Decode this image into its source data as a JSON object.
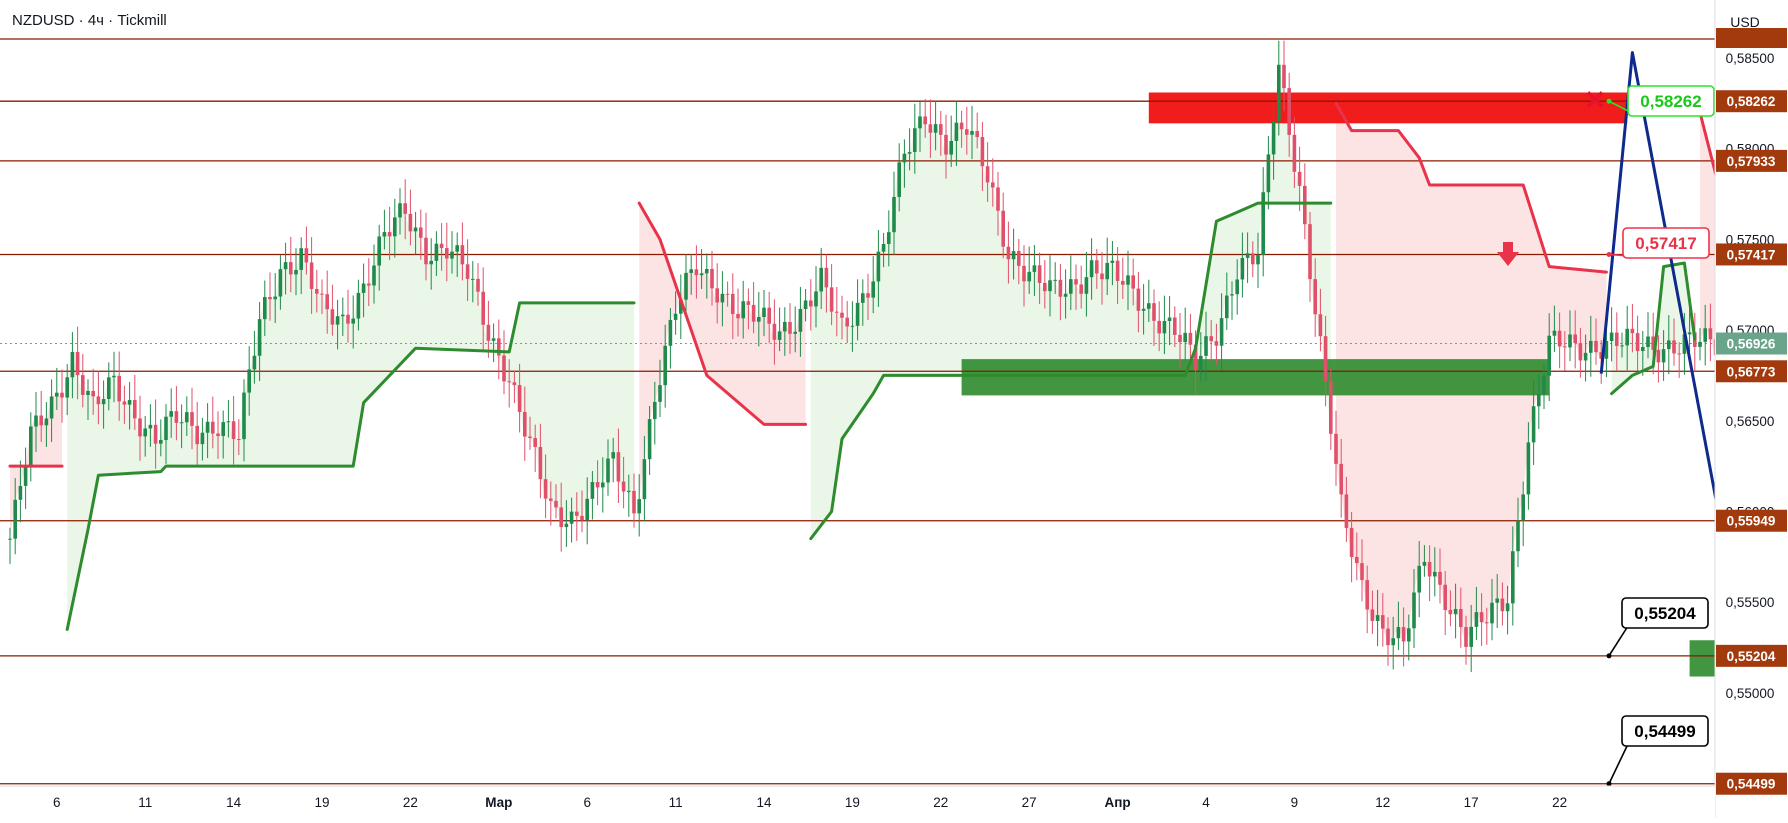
{
  "header": {
    "symbol": "NZDUSD · 4ч · Tickmill"
  },
  "axis_currency": "USD",
  "colors": {
    "level_line": "#8b1a00",
    "level_badge": "#a33a0d",
    "up_candle": "#1f8a4a",
    "down_candle": "#e0506a",
    "supertrend_up": "#2e8b2e",
    "supertrend_down": "#e8334a",
    "fill_up": "#e9f6e6",
    "fill_down": "#fde3e3",
    "supply_zone": "#f01010",
    "demand_zone": "#2e8b2e",
    "projection": "#0d2a8c",
    "current_price_badge": "#6aa48a"
  },
  "callouts": [
    {
      "text": "0,58262",
      "style": "green"
    },
    {
      "text": "0,57417",
      "style": "red"
    },
    {
      "text": "0,55204",
      "style": "black"
    },
    {
      "text": "0,54499",
      "style": "black"
    }
  ],
  "markers": {
    "stop_icon": "x-mark-icon",
    "target_icon": "down-arrow-icon"
  },
  "chart_data": {
    "type": "candlestick",
    "timeframe": "4ч",
    "x_tick_labels": [
      {
        "label": "6",
        "index": 9
      },
      {
        "label": "11",
        "index": 26
      },
      {
        "label": "14",
        "index": 43
      },
      {
        "label": "19",
        "index": 60
      },
      {
        "label": "22",
        "index": 77
      },
      {
        "label": "Мар",
        "index": 94
      },
      {
        "label": "6",
        "index": 111
      },
      {
        "label": "11",
        "index": 128
      },
      {
        "label": "14",
        "index": 145
      },
      {
        "label": "19",
        "index": 162
      },
      {
        "label": "22",
        "index": 179
      },
      {
        "label": "27",
        "index": 196
      },
      {
        "label": "Апр",
        "index": 213
      },
      {
        "label": "4",
        "index": 230
      },
      {
        "label": "9",
        "index": 247
      },
      {
        "label": "12",
        "index": 264
      },
      {
        "label": "17",
        "index": 281
      },
      {
        "label": "22",
        "index": 298
      }
    ],
    "y_tick_labels": [
      "0,58500",
      "0,58000",
      "0,57500",
      "0,57000",
      "0,56500",
      "0,56000",
      "0,55500",
      "0,55000"
    ],
    "ylim": [
      0.5431,
      0.5882
    ],
    "price_levels": [
      "0,58262",
      "0,57933",
      "0,57417",
      "0,56773",
      "0,55949",
      "0,55204",
      "0,54499"
    ],
    "current_price": "0,56926",
    "close_anchors": [
      [
        0,
        0.5585
      ],
      [
        4,
        0.564
      ],
      [
        8,
        0.566
      ],
      [
        12,
        0.5685
      ],
      [
        16,
        0.5655
      ],
      [
        20,
        0.567
      ],
      [
        24,
        0.5655
      ],
      [
        28,
        0.564
      ],
      [
        32,
        0.565
      ],
      [
        36,
        0.5645
      ],
      [
        40,
        0.565
      ],
      [
        44,
        0.564
      ],
      [
        48,
        0.5705
      ],
      [
        52,
        0.5735
      ],
      [
        56,
        0.574
      ],
      [
        60,
        0.571
      ],
      [
        64,
        0.5705
      ],
      [
        68,
        0.5725
      ],
      [
        72,
        0.575
      ],
      [
        76,
        0.5765
      ],
      [
        80,
        0.5745
      ],
      [
        84,
        0.5745
      ],
      [
        88,
        0.573
      ],
      [
        92,
        0.57
      ],
      [
        96,
        0.5675
      ],
      [
        100,
        0.5635
      ],
      [
        104,
        0.56
      ],
      [
        108,
        0.5598
      ],
      [
        112,
        0.561
      ],
      [
        116,
        0.5625
      ],
      [
        120,
        0.56
      ],
      [
        124,
        0.5665
      ],
      [
        128,
        0.571
      ],
      [
        132,
        0.5735
      ],
      [
        136,
        0.5725
      ],
      [
        140,
        0.571
      ],
      [
        144,
        0.5705
      ],
      [
        148,
        0.57
      ],
      [
        152,
        0.571
      ],
      [
        156,
        0.5725
      ],
      [
        160,
        0.57
      ],
      [
        164,
        0.572
      ],
      [
        168,
        0.5745
      ],
      [
        172,
        0.5795
      ],
      [
        176,
        0.582
      ],
      [
        180,
        0.5805
      ],
      [
        184,
        0.581
      ],
      [
        188,
        0.5785
      ],
      [
        192,
        0.5745
      ],
      [
        196,
        0.573
      ],
      [
        200,
        0.572
      ],
      [
        204,
        0.5725
      ],
      [
        208,
        0.5735
      ],
      [
        212,
        0.573
      ],
      [
        216,
        0.572
      ],
      [
        220,
        0.571
      ],
      [
        224,
        0.57
      ],
      [
        228,
        0.568
      ],
      [
        232,
        0.57
      ],
      [
        236,
        0.5735
      ],
      [
        240,
        0.574
      ],
      [
        244,
        0.5845
      ],
      [
        248,
        0.578
      ],
      [
        252,
        0.569
      ],
      [
        256,
        0.56
      ],
      [
        260,
        0.556
      ],
      [
        264,
        0.5535
      ],
      [
        268,
        0.5525
      ],
      [
        272,
        0.5575
      ],
      [
        276,
        0.5555
      ],
      [
        280,
        0.553
      ],
      [
        284,
        0.554
      ],
      [
        288,
        0.5555
      ],
      [
        292,
        0.564
      ],
      [
        296,
        0.569
      ],
      [
        298,
        0.5692
      ]
    ],
    "supertrend": [
      {
        "trend": "down",
        "points": [
          [
            0,
            0.5625
          ],
          [
            10,
            0.5625
          ]
        ]
      },
      {
        "trend": "up",
        "points": [
          [
            11,
            0.5535
          ],
          [
            15,
            0.559
          ],
          [
            17,
            0.562
          ],
          [
            29,
            0.5622
          ],
          [
            30,
            0.5625
          ],
          [
            66,
            0.5625
          ],
          [
            68,
            0.566
          ],
          [
            78,
            0.569
          ],
          [
            96,
            0.5688
          ],
          [
            98,
            0.5715
          ],
          [
            120,
            0.5715
          ]
        ]
      },
      {
        "trend": "down",
        "points": [
          [
            121,
            0.577
          ],
          [
            125,
            0.575
          ],
          [
            134,
            0.5675
          ],
          [
            145,
            0.5648
          ],
          [
            153,
            0.5648
          ]
        ]
      },
      {
        "trend": "up",
        "points": [
          [
            154,
            0.5585
          ],
          [
            158,
            0.56
          ],
          [
            160,
            0.564
          ],
          [
            166,
            0.5665
          ],
          [
            168,
            0.5675
          ],
          [
            226,
            0.5675
          ],
          [
            228,
            0.569
          ],
          [
            232,
            0.576
          ],
          [
            236,
            0.5765
          ],
          [
            240,
            0.577
          ],
          [
            254,
            0.577
          ]
        ]
      },
      {
        "trend": "down",
        "points": [
          [
            255,
            0.5825
          ],
          [
            258,
            0.581
          ],
          [
            267,
            0.581
          ],
          [
            271,
            0.5795
          ],
          [
            273,
            0.578
          ],
          [
            291,
            0.578
          ],
          [
            296,
            0.5735
          ],
          [
            307,
            0.5732
          ]
        ]
      },
      {
        "trend": "up",
        "points": [
          [
            308,
            0.5665
          ],
          [
            312,
            0.5675
          ],
          [
            316,
            0.568
          ],
          [
            318,
            0.5735
          ],
          [
            322,
            0.5737
          ],
          [
            324,
            0.5695
          ]
        ]
      },
      {
        "trend": "down",
        "points": [
          [
            325,
            0.582
          ],
          [
            329,
            0.5775
          ],
          [
            332,
            0.569
          ],
          [
            340,
            0.5688
          ],
          [
            344,
            0.5688
          ],
          [
            347,
            0.5665
          ],
          [
            358,
            0.5665
          ]
        ]
      },
      {
        "trend": "up",
        "points": [
          [
            359,
            0.55
          ],
          [
            361,
            0.553
          ],
          [
            364,
            0.553
          ]
        ]
      }
    ],
    "zones": [
      {
        "type": "supply",
        "x0": 219,
        "x1": 311,
        "y0": 0.5814,
        "y1": 0.5831
      },
      {
        "type": "demand",
        "x0": 183,
        "x1": 296,
        "y0": 0.5664,
        "y1": 0.5684
      },
      {
        "type": "demand",
        "x0": 323,
        "x1": 344,
        "y0": 0.5509,
        "y1": 0.5529
      }
    ],
    "projection_path": [
      [
        306,
        0.5676
      ],
      [
        312,
        0.5853
      ],
      [
        336,
        0.5485
      ],
      [
        352,
        0.5742
      ],
      [
        374,
        0.5444
      ]
    ]
  }
}
